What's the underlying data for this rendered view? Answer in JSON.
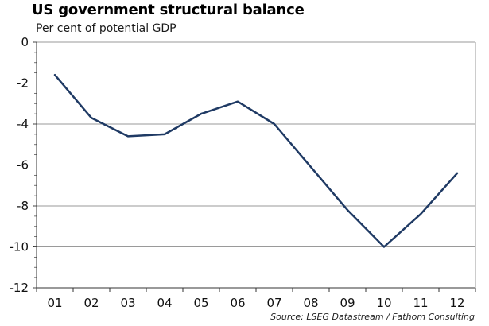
{
  "chart_data": {
    "type": "line",
    "title": "US government structural balance",
    "subtitle": "Per cent of potential GDP",
    "source": "Source: LSEG Datastream / Fathom Consulting",
    "categories": [
      "01",
      "02",
      "03",
      "04",
      "05",
      "06",
      "07",
      "08",
      "09",
      "10",
      "11",
      "12"
    ],
    "series": [
      {
        "values": [
          -1.6,
          -3.7,
          -4.6,
          -4.5,
          -3.5,
          -2.9,
          -4.0,
          -6.1,
          -8.2,
          -10.0,
          -8.4,
          -6.4
        ],
        "color": "#1f3a64"
      }
    ],
    "ylim": [
      -12,
      0
    ],
    "yticks": [
      0,
      -2,
      -4,
      -6,
      -8,
      -10,
      -12
    ],
    "grid": true
  }
}
